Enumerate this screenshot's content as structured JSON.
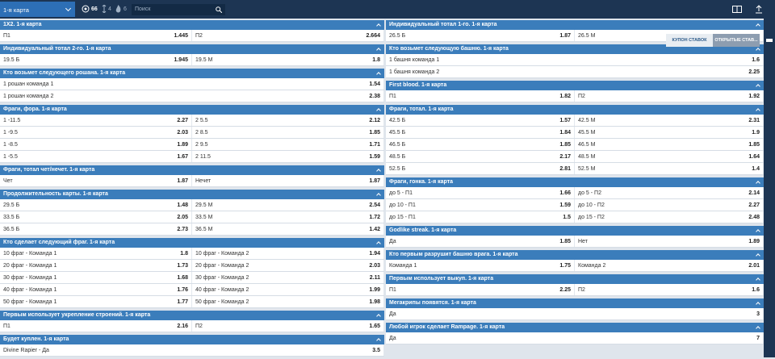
{
  "topbar": {
    "select": "1-я карта",
    "counts": [
      66,
      4,
      6
    ],
    "search_placeholder": "Поиск"
  },
  "coupon_tabs": [
    "КУПОН СТАВОК",
    "ОТКРЫТЫЕ СТАВ..."
  ],
  "columns": [
    {
      "sections": [
        {
          "title": "1X2. 1-я карта",
          "rows": [
            [
              {
                "label": "П1",
                "odd": 1.445
              },
              {
                "label": "П2",
                "odd": 2.664
              }
            ]
          ]
        },
        {
          "title": "Индивидуальный тотал 2-го. 1-я карта",
          "rows": [
            [
              {
                "label": "19.5 Б",
                "odd": 1.945
              },
              {
                "label": "19.5 М",
                "odd": 1.8
              }
            ]
          ]
        },
        {
          "title": "Кто возьмет следующего рошана. 1-я карта",
          "rows": [
            [
              {
                "label": "1 рошан команда 1",
                "odd": 1.54
              }
            ],
            [
              {
                "label": "1 рошан команда 2",
                "odd": 2.38
              }
            ]
          ]
        },
        {
          "title": "Фраги, фора. 1-я карта",
          "rows": [
            [
              {
                "label": "1 -11.5",
                "odd": 2.27
              },
              {
                "label": "2 5.5",
                "odd": 2.12
              }
            ],
            [
              {
                "label": "1 -9.5",
                "odd": 2.03
              },
              {
                "label": "2 8.5",
                "odd": 1.85
              }
            ],
            [
              {
                "label": "1 -8.5",
                "odd": 1.89
              },
              {
                "label": "2 9.5",
                "odd": 1.71
              }
            ],
            [
              {
                "label": "1 -5.5",
                "odd": 1.67
              },
              {
                "label": "2 11.5",
                "odd": 1.59
              }
            ]
          ]
        },
        {
          "title": "Фраги, тотал чет/нечет. 1-я карта",
          "rows": [
            [
              {
                "label": "Чет",
                "odd": 1.87
              },
              {
                "label": "Нечет",
                "odd": 1.87
              }
            ]
          ]
        },
        {
          "title": "Продолжительность карты. 1-я карта",
          "rows": [
            [
              {
                "label": "29.5 Б",
                "odd": 1.48
              },
              {
                "label": "29.5 М",
                "odd": 2.54
              }
            ],
            [
              {
                "label": "33.5 Б",
                "odd": 2.05
              },
              {
                "label": "33.5 М",
                "odd": 1.72
              }
            ],
            [
              {
                "label": "36.5 Б",
                "odd": 2.73
              },
              {
                "label": "36.5 М",
                "odd": 1.42
              }
            ]
          ]
        },
        {
          "title": "Кто сделает следующий фраг. 1-я карта",
          "rows": [
            [
              {
                "label": "10 фраг - Команда 1",
                "odd": 1.8
              },
              {
                "label": "10 фраг - Команда 2",
                "odd": 1.94
              }
            ],
            [
              {
                "label": "20 фраг - Команда 1",
                "odd": 1.73
              },
              {
                "label": "20 фраг - Команда 2",
                "odd": 2.03
              }
            ],
            [
              {
                "label": "30 фраг - Команда 1",
                "odd": 1.68
              },
              {
                "label": "30 фраг - Команда 2",
                "odd": 2.11
              }
            ],
            [
              {
                "label": "40 фраг - Команда 1",
                "odd": 1.76
              },
              {
                "label": "40 фраг - Команда 2",
                "odd": 1.99
              }
            ],
            [
              {
                "label": "50 фраг - Команда 1",
                "odd": 1.77
              },
              {
                "label": "50 фраг - Команда 2",
                "odd": 1.98
              }
            ]
          ]
        },
        {
          "title": "Первым использует укрепление строений. 1-я карта",
          "rows": [
            [
              {
                "label": "П1",
                "odd": 2.16
              },
              {
                "label": "П2",
                "odd": 1.65
              }
            ]
          ]
        },
        {
          "title": "Будет куплен. 1-я карта",
          "rows": [
            [
              {
                "label": "Divine Rapier - Да",
                "odd": 3.5
              }
            ]
          ]
        }
      ]
    },
    {
      "sections": [
        {
          "title": "Индивидуальный тотал 1-го. 1-я карта",
          "rows": [
            [
              {
                "label": "26.5 Б",
                "odd": 1.87
              },
              {
                "label": "26.5 М"
              }
            ]
          ]
        },
        {
          "title": "Кто возьмет следующую башню. 1-я карта",
          "rows": [
            [
              {
                "label": "1 башня команда 1",
                "odd": 1.6
              }
            ],
            [
              {
                "label": "1 башня команда 2",
                "odd": 2.25
              }
            ]
          ]
        },
        {
          "title": "First blood. 1-я карта",
          "rows": [
            [
              {
                "label": "П1",
                "odd": 1.82
              },
              {
                "label": "П2",
                "odd": 1.92
              }
            ]
          ]
        },
        {
          "title": "Фраги, тотал. 1-я карта",
          "rows": [
            [
              {
                "label": "42.5 Б",
                "odd": 1.57
              },
              {
                "label": "42.5 М",
                "odd": 2.31
              }
            ],
            [
              {
                "label": "45.5 Б",
                "odd": 1.84
              },
              {
                "label": "45.5 М",
                "odd": 1.9
              }
            ],
            [
              {
                "label": "46.5 Б",
                "odd": 1.85
              },
              {
                "label": "46.5 М",
                "odd": 1.85
              }
            ],
            [
              {
                "label": "48.5 Б",
                "odd": 2.17
              },
              {
                "label": "48.5 М",
                "odd": 1.64
              }
            ],
            [
              {
                "label": "52.5 Б",
                "odd": 2.81
              },
              {
                "label": "52.5 М",
                "odd": 1.4
              }
            ]
          ]
        },
        {
          "title": "Фраги, гонка. 1-я карта",
          "rows": [
            [
              {
                "label": "до 5 - П1",
                "odd": 1.66
              },
              {
                "label": "до 5 - П2",
                "odd": 2.14
              }
            ],
            [
              {
                "label": "до 10 - П1",
                "odd": 1.59
              },
              {
                "label": "до 10 - П2",
                "odd": 2.27
              }
            ],
            [
              {
                "label": "до 15 - П1",
                "odd": 1.5
              },
              {
                "label": "до 15 - П2",
                "odd": 2.48
              }
            ]
          ]
        },
        {
          "title": "Godlike streak. 1-я карта",
          "rows": [
            [
              {
                "label": "Да",
                "odd": 1.85
              },
              {
                "label": "Нет",
                "odd": 1.89
              }
            ]
          ]
        },
        {
          "title": "Кто первым разрушит башню врага. 1-я карта",
          "rows": [
            [
              {
                "label": "Команда 1",
                "odd": 1.75
              },
              {
                "label": "Команда 2",
                "odd": 2.01
              }
            ]
          ]
        },
        {
          "title": "Первым использует выкуп. 1-я карта",
          "rows": [
            [
              {
                "label": "П1",
                "odd": 2.25
              },
              {
                "label": "П2",
                "odd": 1.6
              }
            ]
          ]
        },
        {
          "title": "Мегакрипы появятся. 1-я карта",
          "rows": [
            [
              {
                "label": "Да",
                "odd": 3
              }
            ]
          ]
        },
        {
          "title": "Любой игрок сделает Rampage. 1-я карта",
          "rows": [
            [
              {
                "label": "Да",
                "odd": 7
              }
            ]
          ]
        }
      ]
    }
  ]
}
